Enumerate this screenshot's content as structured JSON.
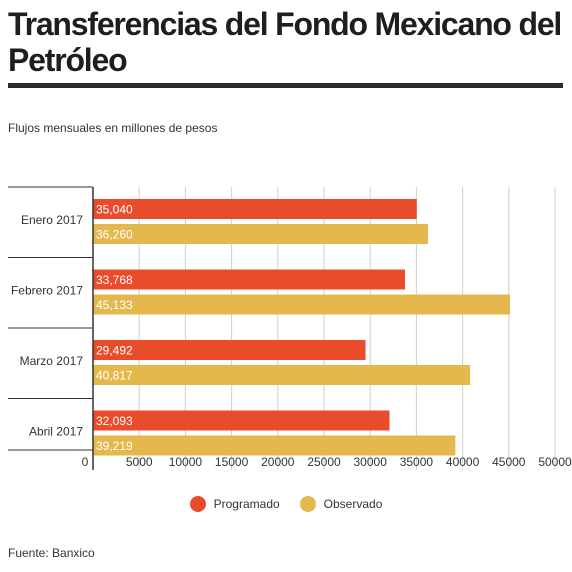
{
  "title": "Transferencias del Fondo Mexicano del Petróleo",
  "subtitle": "Flujos mensuales en millones de pesos",
  "source": "Fuente: Banxico",
  "colors": {
    "programado": "#e94c2b",
    "observado": "#e5b84e",
    "grid": "#cfcfcf",
    "axis": "#333333"
  },
  "chart_data": {
    "type": "bar",
    "orientation": "horizontal",
    "categories": [
      "Enero 2017",
      "Febrero 2017",
      "Marzo 2017",
      "Abril 2017"
    ],
    "series": [
      {
        "name": "Programado",
        "values": [
          35040,
          33768,
          29492,
          32093
        ],
        "labels": [
          "35,040",
          "33,768",
          "29,492",
          "32,093"
        ]
      },
      {
        "name": "Observado",
        "values": [
          36260,
          45133,
          40817,
          39219
        ],
        "labels": [
          "36,260",
          "45,133",
          "40,817",
          "39,219"
        ]
      }
    ],
    "xlim": [
      0,
      50000
    ],
    "xticks": [
      0,
      5000,
      10000,
      15000,
      20000,
      25000,
      30000,
      35000,
      40000,
      45000,
      50000
    ],
    "xtick_labels": [
      "0",
      "5000",
      "10000",
      "15000",
      "20000",
      "25000",
      "30000",
      "35000",
      "40000",
      "45000",
      "50000"
    ],
    "grid": true,
    "legend": "bottom-center"
  }
}
